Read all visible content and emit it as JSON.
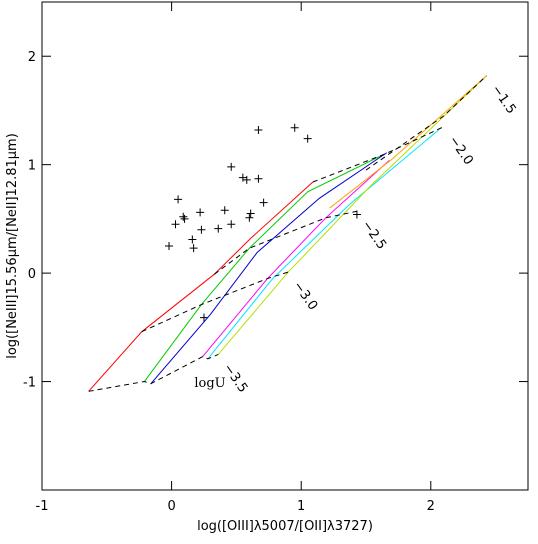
{
  "chart_data": {
    "type": "scatter",
    "x_label": "log([OIII]λ5007/[OII]λ3727)",
    "y_label": "log([NeIII]15.56μm/[NeII]12.81μm)",
    "annotation": "logU",
    "xlim": [
      -1,
      2.75
    ],
    "ylim": [
      -2,
      2.5
    ],
    "xticks": [
      -1,
      0,
      1,
      2
    ],
    "yticks": [
      -1,
      0,
      1,
      2
    ],
    "series": [
      {
        "style": "markers",
        "color": "#000000",
        "x": [
          0.05,
          0.03,
          0.09,
          0.1,
          -0.02,
          0.16,
          0.17,
          0.22,
          0.23,
          0.36,
          0.41,
          0.46,
          0.46,
          0.55,
          0.58,
          0.6,
          0.61,
          0.67,
          0.67,
          0.71,
          0.95,
          1.05,
          1.43,
          0.25
        ],
        "values": [
          0.68,
          0.45,
          0.52,
          0.5,
          0.25,
          0.31,
          0.23,
          0.56,
          0.4,
          0.41,
          0.58,
          0.98,
          0.45,
          0.88,
          0.86,
          0.51,
          0.55,
          0.87,
          1.32,
          0.65,
          1.34,
          1.24,
          0.54,
          -0.41
        ]
      },
      {
        "style": "solid",
        "color": "#ff0000",
        "x": [
          -0.64,
          -0.23,
          0.33,
          0.61,
          1.09
        ],
        "values": [
          -1.09,
          -0.54,
          -0.01,
          0.32,
          0.84
        ]
      },
      {
        "style": "solid",
        "color": "#00cc00",
        "x": [
          -0.21,
          0.23,
          0.6,
          1.05,
          1.63
        ],
        "values": [
          -1.0,
          -0.29,
          0.23,
          0.75,
          1.09
        ]
      },
      {
        "style": "solid",
        "color": "#0000cc",
        "x": [
          -0.16,
          0.3,
          0.66,
          1.14,
          1.66
        ],
        "values": [
          -1.02,
          -0.38,
          0.19,
          0.69,
          1.11
        ]
      },
      {
        "style": "solid",
        "color": "#ff00ff",
        "x": [
          0.24,
          0.74,
          1.19,
          1.68
        ],
        "values": [
          -0.77,
          -0.05,
          0.51,
          1.04
        ]
      },
      {
        "style": "solid",
        "color": "#00e5ff",
        "x": [
          0.28,
          0.78,
          1.37,
          2.06
        ],
        "values": [
          -0.79,
          -0.05,
          0.63,
          1.32
        ]
      },
      {
        "style": "solid",
        "color": "#b5e000",
        "x": [
          0.36,
          0.9,
          1.54,
          2.43
        ],
        "values": [
          -0.75,
          0.01,
          0.81,
          1.82
        ]
      },
      {
        "style": "solid",
        "color": "#ffa500",
        "x": [
          1.22,
          1.7,
          2.43
        ],
        "values": [
          0.6,
          1.05,
          1.82
        ]
      },
      {
        "style": "dashed",
        "color": "#000000",
        "name": "−3.5",
        "x": [
          -0.64,
          -0.21,
          -0.16,
          0.24,
          0.28,
          0.36
        ],
        "values": [
          -1.09,
          -1.0,
          -1.02,
          -0.77,
          -0.79,
          -0.75
        ]
      },
      {
        "style": "dashed",
        "color": "#000000",
        "name": "−3.0",
        "x": [
          -0.23,
          0.23,
          0.74,
          0.9
        ],
        "values": [
          -0.54,
          -0.29,
          -0.05,
          0.01
        ]
      },
      {
        "style": "dashed",
        "color": "#000000",
        "name": "−2.5",
        "x": [
          0.33,
          0.6,
          1.19,
          1.43
        ],
        "values": [
          -0.01,
          0.23,
          0.51,
          0.57
        ]
      },
      {
        "style": "dashed",
        "color": "#000000",
        "name": "−2.0",
        "x": [
          1.09,
          1.65,
          2.1
        ],
        "values": [
          0.84,
          1.1,
          1.35
        ]
      },
      {
        "style": "dashed",
        "color": "#000000",
        "name": "−1.5",
        "x": [
          1.5,
          2.1,
          2.43
        ],
        "values": [
          0.95,
          1.45,
          1.82
        ]
      }
    ]
  }
}
